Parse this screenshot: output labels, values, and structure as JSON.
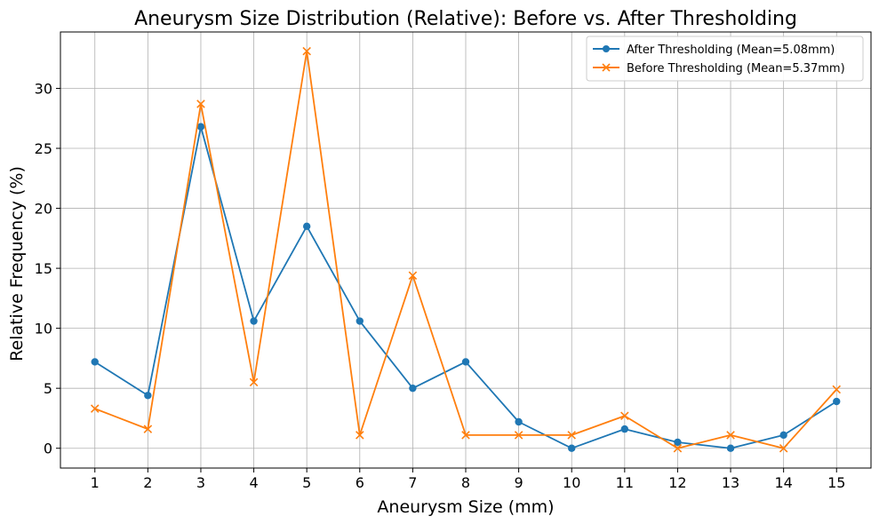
{
  "chart_data": {
    "type": "line",
    "title": "Aneurysm Size Distribution (Relative): Before vs. After Thresholding",
    "xlabel": "Aneurysm Size (mm)",
    "ylabel": "Relative Frequency (%)",
    "x": [
      1,
      2,
      3,
      4,
      5,
      6,
      7,
      8,
      9,
      10,
      11,
      12,
      13,
      14,
      15
    ],
    "xlim": [
      0.35,
      15.65
    ],
    "ylim": [
      -1.65,
      34.7
    ],
    "xticks": [
      1,
      2,
      3,
      4,
      5,
      6,
      7,
      8,
      9,
      10,
      11,
      12,
      13,
      14,
      15
    ],
    "yticks": [
      0,
      5,
      10,
      15,
      20,
      25,
      30
    ],
    "grid": true,
    "legend_position": "top-right",
    "series": [
      {
        "name": "After Thresholding (Mean=5.08mm)",
        "color": "#1f77b4",
        "marker": "circle",
        "values": [
          7.2,
          4.4,
          26.8,
          10.6,
          18.5,
          10.6,
          5.0,
          7.2,
          2.2,
          0.0,
          1.6,
          0.5,
          0.0,
          1.1,
          3.9
        ]
      },
      {
        "name": "Before Thresholding (Mean=5.37mm)",
        "color": "#ff7f0e",
        "marker": "x",
        "values": [
          3.3,
          1.6,
          28.7,
          5.5,
          33.1,
          1.1,
          14.4,
          1.1,
          1.1,
          1.1,
          2.7,
          0.0,
          1.1,
          0.0,
          4.9
        ]
      }
    ]
  }
}
